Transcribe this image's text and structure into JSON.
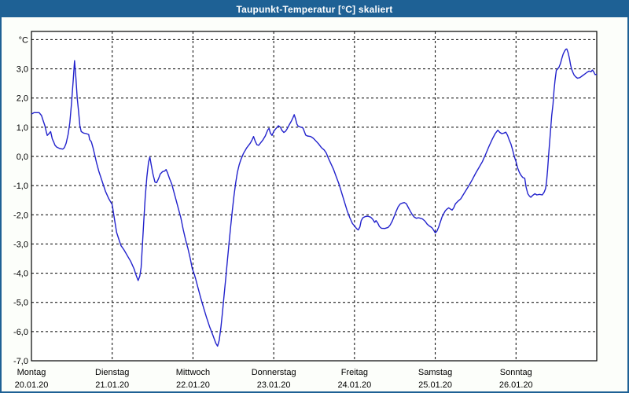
{
  "window": {
    "title": "Taupunkt-Temperatur [°C] skaliert"
  },
  "colors": {
    "titlebar": "#1e6195",
    "window_border": "#1e6195",
    "title_text": "#ffffff",
    "page_bg": "#fcfefa",
    "plot_bg": "#ffffff",
    "grid": "#000000",
    "line": "#2222cc"
  },
  "chart_data": {
    "type": "line",
    "title": "Taupunkt-Temperatur [°C] skaliert",
    "ylabel": "°C",
    "ylim": [
      -7.0,
      4.3
    ],
    "xlim_hours": [
      0,
      168
    ],
    "grid": "dashed black, horizontal at every 1.0 °C and vertical at every day boundary",
    "legend": "none",
    "y_ticks": [
      {
        "value": 4,
        "label": "°C"
      },
      {
        "value": 3,
        "label": "3,0"
      },
      {
        "value": 2,
        "label": "2,0"
      },
      {
        "value": 1,
        "label": "1,0"
      },
      {
        "value": 0,
        "label": "0,0"
      },
      {
        "value": -1,
        "label": "-1,0"
      },
      {
        "value": -2,
        "label": "-2,0"
      },
      {
        "value": -3,
        "label": "-3,0"
      },
      {
        "value": -4,
        "label": "-4,0"
      },
      {
        "value": -5,
        "label": "-5,0"
      },
      {
        "value": -6,
        "label": "-6,0"
      },
      {
        "value": -7,
        "label": "-7,0"
      }
    ],
    "x_days": [
      {
        "day": "Montag",
        "date": "20.01.20"
      },
      {
        "day": "Dienstag",
        "date": "21.01.20"
      },
      {
        "day": "Mittwoch",
        "date": "22.01.20"
      },
      {
        "day": "Donnerstag",
        "date": "23.01.20"
      },
      {
        "day": "Freitag",
        "date": "24.01.20"
      },
      {
        "day": "Samstag",
        "date": "25.01.20"
      },
      {
        "day": "Sonntag",
        "date": "26.01.20"
      }
    ],
    "series": [
      {
        "name": "Taupunkt-Temperatur",
        "color": "#2222cc",
        "points_hours_degC": [
          [
            0,
            1.45
          ],
          [
            0.8,
            1.5
          ],
          [
            2.3,
            1.5
          ],
          [
            3,
            1.4
          ],
          [
            3.4,
            1.25
          ],
          [
            4,
            1.05
          ],
          [
            4.4,
            0.85
          ],
          [
            4.7,
            0.72
          ],
          [
            5.2,
            0.78
          ],
          [
            5.7,
            0.85
          ],
          [
            6.2,
            0.6
          ],
          [
            6.6,
            0.5
          ],
          [
            7,
            0.38
          ],
          [
            7.5,
            0.32
          ],
          [
            8.4,
            0.27
          ],
          [
            9.3,
            0.25
          ],
          [
            9.8,
            0.3
          ],
          [
            10.3,
            0.45
          ],
          [
            10.9,
            0.75
          ],
          [
            11.4,
            1.15
          ],
          [
            11.9,
            1.8
          ],
          [
            12.4,
            2.6
          ],
          [
            12.8,
            3.28
          ],
          [
            13.2,
            2.7
          ],
          [
            13.6,
            2.0
          ],
          [
            14,
            1.55
          ],
          [
            14.4,
            1.05
          ],
          [
            14.8,
            0.85
          ],
          [
            15.5,
            0.8
          ],
          [
            16.3,
            0.78
          ],
          [
            17,
            0.75
          ],
          [
            17.3,
            0.58
          ],
          [
            17.8,
            0.5
          ],
          [
            18.3,
            0.3
          ],
          [
            18.8,
            0.05
          ],
          [
            19.3,
            -0.2
          ],
          [
            20,
            -0.5
          ],
          [
            21,
            -0.85
          ],
          [
            22,
            -1.2
          ],
          [
            23,
            -1.45
          ],
          [
            24,
            -1.65
          ],
          [
            24.6,
            -2.1
          ],
          [
            25.3,
            -2.6
          ],
          [
            26,
            -2.85
          ],
          [
            26.6,
            -3.05
          ],
          [
            27.5,
            -3.2
          ],
          [
            28.5,
            -3.4
          ],
          [
            29.5,
            -3.6
          ],
          [
            30.5,
            -3.85
          ],
          [
            31.2,
            -4.1
          ],
          [
            31.7,
            -4.25
          ],
          [
            32.2,
            -4.1
          ],
          [
            32.6,
            -3.8
          ],
          [
            33,
            -3.0
          ],
          [
            33.4,
            -2.2
          ],
          [
            33.8,
            -1.4
          ],
          [
            34.3,
            -0.7
          ],
          [
            34.8,
            -0.2
          ],
          [
            35.2,
            -0.02
          ],
          [
            35.6,
            -0.3
          ],
          [
            36.1,
            -0.6
          ],
          [
            36.7,
            -0.88
          ],
          [
            37.2,
            -0.9
          ],
          [
            37.8,
            -0.75
          ],
          [
            38.3,
            -0.6
          ],
          [
            39,
            -0.52
          ],
          [
            39.6,
            -0.5
          ],
          [
            40,
            -0.45
          ],
          [
            40.4,
            -0.55
          ],
          [
            41,
            -0.75
          ],
          [
            41.7,
            -0.95
          ],
          [
            42.3,
            -1.2
          ],
          [
            43,
            -1.5
          ],
          [
            43.7,
            -1.8
          ],
          [
            44.4,
            -2.1
          ],
          [
            45.1,
            -2.5
          ],
          [
            45.8,
            -2.85
          ],
          [
            46.5,
            -3.15
          ],
          [
            47.2,
            -3.5
          ],
          [
            47.8,
            -3.85
          ],
          [
            48.3,
            -4.0
          ],
          [
            48.8,
            -4.2
          ],
          [
            49.5,
            -4.5
          ],
          [
            50.3,
            -4.85
          ],
          [
            51.2,
            -5.2
          ],
          [
            52,
            -5.5
          ],
          [
            53,
            -5.85
          ],
          [
            54,
            -6.15
          ],
          [
            54.8,
            -6.4
          ],
          [
            55.3,
            -6.5
          ],
          [
            55.8,
            -6.3
          ],
          [
            56.3,
            -5.85
          ],
          [
            56.8,
            -5.3
          ],
          [
            57.3,
            -4.7
          ],
          [
            57.8,
            -4.1
          ],
          [
            58.2,
            -3.6
          ],
          [
            58.7,
            -3.0
          ],
          [
            59.2,
            -2.4
          ],
          [
            59.7,
            -1.85
          ],
          [
            60.2,
            -1.35
          ],
          [
            60.7,
            -0.9
          ],
          [
            61.2,
            -0.55
          ],
          [
            61.7,
            -0.3
          ],
          [
            62.2,
            -0.12
          ],
          [
            63,
            0.1
          ],
          [
            64,
            0.3
          ],
          [
            65,
            0.45
          ],
          [
            65.5,
            0.55
          ],
          [
            66,
            0.68
          ],
          [
            66.5,
            0.52
          ],
          [
            67,
            0.4
          ],
          [
            67.5,
            0.38
          ],
          [
            68,
            0.45
          ],
          [
            68.7,
            0.55
          ],
          [
            69.5,
            0.7
          ],
          [
            70.2,
            0.9
          ],
          [
            70.6,
            0.96
          ],
          [
            71,
            0.8
          ],
          [
            71.5,
            0.72
          ],
          [
            72,
            0.85
          ],
          [
            72.4,
            0.92
          ],
          [
            73,
            1.0
          ],
          [
            73.4,
            1.05
          ],
          [
            74,
            1.0
          ],
          [
            74.4,
            0.9
          ],
          [
            75,
            0.82
          ],
          [
            75.5,
            0.86
          ],
          [
            76,
            0.95
          ],
          [
            76.6,
            1.08
          ],
          [
            77.2,
            1.2
          ],
          [
            77.7,
            1.32
          ],
          [
            78.1,
            1.43
          ],
          [
            78.5,
            1.28
          ],
          [
            78.9,
            1.1
          ],
          [
            79.3,
            1.03
          ],
          [
            80.2,
            1.0
          ],
          [
            80.7,
            0.97
          ],
          [
            81.1,
            0.85
          ],
          [
            81.5,
            0.73
          ],
          [
            82,
            0.7
          ],
          [
            83,
            0.68
          ],
          [
            83.8,
            0.62
          ],
          [
            84.6,
            0.52
          ],
          [
            85.4,
            0.42
          ],
          [
            86.2,
            0.3
          ],
          [
            87,
            0.22
          ],
          [
            87.6,
            0.12
          ],
          [
            88.2,
            -0.05
          ],
          [
            89,
            -0.25
          ],
          [
            89.8,
            -0.45
          ],
          [
            90.6,
            -0.7
          ],
          [
            91.4,
            -0.95
          ],
          [
            92.2,
            -1.25
          ],
          [
            93,
            -1.55
          ],
          [
            93.8,
            -1.85
          ],
          [
            94.6,
            -2.1
          ],
          [
            95.4,
            -2.3
          ],
          [
            96,
            -2.38
          ],
          [
            96.6,
            -2.47
          ],
          [
            97.1,
            -2.52
          ],
          [
            97.6,
            -2.42
          ],
          [
            98,
            -2.2
          ],
          [
            98.5,
            -2.1
          ],
          [
            99.2,
            -2.06
          ],
          [
            100,
            -2.05
          ],
          [
            100.8,
            -2.08
          ],
          [
            101.4,
            -2.15
          ],
          [
            102,
            -2.26
          ],
          [
            102.4,
            -2.2
          ],
          [
            102.9,
            -2.28
          ],
          [
            103.4,
            -2.4
          ],
          [
            104,
            -2.46
          ],
          [
            105,
            -2.47
          ],
          [
            106,
            -2.43
          ],
          [
            106.6,
            -2.35
          ],
          [
            107.2,
            -2.22
          ],
          [
            107.8,
            -2.05
          ],
          [
            108.4,
            -1.88
          ],
          [
            109,
            -1.72
          ],
          [
            109.6,
            -1.63
          ],
          [
            110.2,
            -1.6
          ],
          [
            110.8,
            -1.58
          ],
          [
            111.4,
            -1.62
          ],
          [
            112,
            -1.75
          ],
          [
            112.6,
            -1.88
          ],
          [
            113.2,
            -2.0
          ],
          [
            113.8,
            -2.08
          ],
          [
            114.4,
            -2.12
          ],
          [
            115,
            -2.1
          ],
          [
            115.6,
            -2.12
          ],
          [
            116.2,
            -2.14
          ],
          [
            117,
            -2.22
          ],
          [
            117.6,
            -2.32
          ],
          [
            118.2,
            -2.38
          ],
          [
            119,
            -2.44
          ],
          [
            119.5,
            -2.52
          ],
          [
            120,
            -2.62
          ],
          [
            120.5,
            -2.56
          ],
          [
            121,
            -2.42
          ],
          [
            121.5,
            -2.25
          ],
          [
            122,
            -2.08
          ],
          [
            122.5,
            -1.96
          ],
          [
            123,
            -1.86
          ],
          [
            123.5,
            -1.8
          ],
          [
            124,
            -1.76
          ],
          [
            124.5,
            -1.8
          ],
          [
            125,
            -1.84
          ],
          [
            125.5,
            -1.76
          ],
          [
            126,
            -1.62
          ],
          [
            126.8,
            -1.53
          ],
          [
            127.6,
            -1.45
          ],
          [
            128.4,
            -1.3
          ],
          [
            129.2,
            -1.15
          ],
          [
            130,
            -1.0
          ],
          [
            131,
            -0.8
          ],
          [
            132,
            -0.58
          ],
          [
            133,
            -0.38
          ],
          [
            134,
            -0.18
          ],
          [
            135,
            0.08
          ],
          [
            136,
            0.35
          ],
          [
            137,
            0.6
          ],
          [
            137.8,
            0.78
          ],
          [
            138.6,
            0.9
          ],
          [
            139.2,
            0.82
          ],
          [
            139.8,
            0.78
          ],
          [
            140.4,
            0.8
          ],
          [
            141,
            0.83
          ],
          [
            141.5,
            0.72
          ],
          [
            142,
            0.56
          ],
          [
            142.5,
            0.42
          ],
          [
            143,
            0.22
          ],
          [
            143.5,
            0.0
          ],
          [
            144,
            -0.18
          ],
          [
            144.5,
            -0.4
          ],
          [
            145,
            -0.55
          ],
          [
            145.5,
            -0.65
          ],
          [
            146,
            -0.72
          ],
          [
            146.6,
            -0.75
          ],
          [
            147,
            -1.05
          ],
          [
            147.5,
            -1.28
          ],
          [
            148,
            -1.36
          ],
          [
            148.4,
            -1.4
          ],
          [
            149,
            -1.33
          ],
          [
            149.6,
            -1.28
          ],
          [
            150.2,
            -1.32
          ],
          [
            151,
            -1.3
          ],
          [
            151.8,
            -1.32
          ],
          [
            152.4,
            -1.22
          ],
          [
            152.8,
            -1.1
          ],
          [
            153.1,
            -0.85
          ],
          [
            153.4,
            -0.45
          ],
          [
            153.7,
            0.05
          ],
          [
            154,
            0.5
          ],
          [
            154.3,
            0.95
          ],
          [
            154.6,
            1.4
          ],
          [
            155,
            1.8
          ],
          [
            155.3,
            2.25
          ],
          [
            155.6,
            2.6
          ],
          [
            156,
            2.95
          ],
          [
            156.4,
            3.0
          ],
          [
            156.8,
            3.06
          ],
          [
            157.2,
            3.18
          ],
          [
            157.6,
            3.35
          ],
          [
            158,
            3.5
          ],
          [
            158.4,
            3.6
          ],
          [
            158.8,
            3.67
          ],
          [
            159.1,
            3.68
          ],
          [
            159.5,
            3.55
          ],
          [
            159.9,
            3.35
          ],
          [
            160.2,
            3.15
          ],
          [
            160.5,
            3.0
          ],
          [
            160.9,
            2.88
          ],
          [
            161.3,
            2.78
          ],
          [
            161.8,
            2.72
          ],
          [
            162.3,
            2.68
          ],
          [
            163,
            2.7
          ],
          [
            163.7,
            2.76
          ],
          [
            164.4,
            2.82
          ],
          [
            165.1,
            2.88
          ],
          [
            165.7,
            2.92
          ],
          [
            166.3,
            2.9
          ],
          [
            166.7,
            2.96
          ],
          [
            167.1,
            2.9
          ],
          [
            167.5,
            2.8
          ],
          [
            168,
            2.82
          ]
        ]
      }
    ]
  }
}
